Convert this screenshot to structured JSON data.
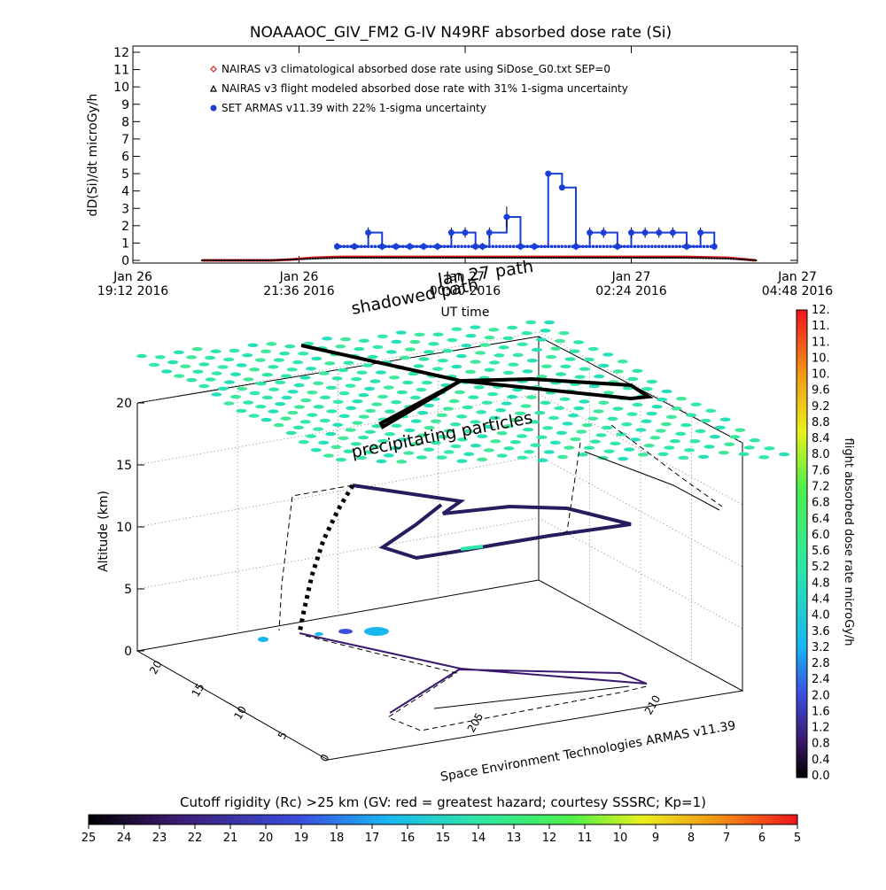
{
  "page_title": "NOAAAOC_GIV_FM2 G-IV    N49RF  absorbed dose rate (Si)",
  "chart_data": [
    {
      "type": "line",
      "title": "NOAAAOC_GIV_FM2 G-IV    N49RF  absorbed dose rate (Si)",
      "ylabel": "dD(Si)/dt microGy/h",
      "xlabel": "UT time",
      "ylim": [
        0,
        12
      ],
      "yticks": [
        "0",
        "1",
        "2",
        "3",
        "4",
        "5",
        "6",
        "7",
        "8",
        "9",
        "10",
        "11",
        "12"
      ],
      "xticks": [
        {
          "line1": "Jan 26",
          "line2": "19:12 2016"
        },
        {
          "line1": "Jan 26",
          "line2": "21:36 2016"
        },
        {
          "line1": "Jan 27",
          "line2": "00:00 2016"
        },
        {
          "line1": "Jan 27",
          "line2": "02:24 2016"
        },
        {
          "line1": "Jan 27",
          "line2": "04:48 2016"
        }
      ],
      "x_unit": "hours since Jan 26 19:12 2016",
      "xlim": [
        0,
        9.6
      ],
      "legend_position": "top-left",
      "series": [
        {
          "name": "NAIRAS v3 climatological absorbed dose rate using SiDose_G0.txt SEP=0",
          "color": "#d62020",
          "marker": "diamond",
          "x": [
            1.0,
            2.0,
            2.3,
            2.6,
            3.0,
            4.0,
            5.0,
            6.0,
            7.0,
            8.0,
            8.6,
            9.0
          ],
          "y": [
            0.0,
            0.0,
            0.05,
            0.15,
            0.2,
            0.2,
            0.2,
            0.2,
            0.2,
            0.2,
            0.15,
            0.0
          ]
        },
        {
          "name": "NAIRAS v3 flight modeled absorbed dose rate with 31% 1-sigma uncertainty",
          "color": "#000000",
          "marker": "triangle",
          "x": [
            1.0,
            2.0,
            2.3,
            2.6,
            3.0,
            4.0,
            5.0,
            6.0,
            7.0,
            8.0,
            8.6,
            9.0
          ],
          "y": [
            0.0,
            0.0,
            0.05,
            0.1,
            0.15,
            0.15,
            0.15,
            0.15,
            0.15,
            0.15,
            0.1,
            0.0
          ]
        },
        {
          "name": "SET ARMAS v11.39 with 22% 1-sigma uncertainty",
          "color": "#1a3fd6",
          "marker": "circle",
          "x": [
            2.95,
            3.2,
            3.4,
            3.6,
            3.8,
            4.0,
            4.2,
            4.4,
            4.6,
            4.8,
            4.95,
            5.05,
            5.15,
            5.4,
            5.6,
            5.8,
            6.0,
            6.2,
            6.4,
            6.6,
            6.8,
            7.0,
            7.2,
            7.4,
            7.6,
            7.8,
            8.0,
            8.2,
            8.4
          ],
          "y": [
            0.8,
            0.8,
            1.6,
            0.8,
            0.8,
            0.8,
            0.8,
            0.8,
            1.6,
            1.6,
            0.8,
            0.8,
            1.6,
            2.5,
            0.8,
            0.8,
            5.0,
            4.2,
            0.8,
            1.6,
            1.6,
            0.8,
            1.6,
            1.6,
            1.6,
            1.6,
            0.8,
            1.6,
            0.8
          ],
          "yerr": [
            0.2,
            0.2,
            0.3,
            0.2,
            0.2,
            0.2,
            0.2,
            0.2,
            0.3,
            0.3,
            0.2,
            0.2,
            0.3,
            0.6,
            0.2,
            0.2,
            0.1,
            0.1,
            0.2,
            0.3,
            0.3,
            0.2,
            0.3,
            0.3,
            0.3,
            0.3,
            0.2,
            0.3,
            0.2
          ]
        }
      ]
    },
    {
      "type": "scatter",
      "ylabel": "Altitude (km)",
      "z_ticks": [
        "0",
        "5",
        "10",
        "15",
        "20"
      ],
      "x_ticks": [
        "205",
        "210"
      ],
      "y_ticks": [
        "0",
        "5",
        "10",
        "15",
        "20"
      ],
      "annotations": [
        "shadowed path",
        "precipitating particles"
      ],
      "overprinted_xlabel": "Jan 27 path",
      "credit": "Space Environment Technologies ARMAS v11.39"
    },
    {
      "type": "heatmap",
      "title": "flight absorbed dose rate microGy/h",
      "range": [
        0.0,
        12.0
      ],
      "ticks": [
        "0.0",
        "0.4",
        "0.8",
        "1.2",
        "1.6",
        "2.0",
        "2.4",
        "2.8",
        "3.2",
        "3.6",
        "4.0",
        "4.4",
        "4.8",
        "5.2",
        "5.6",
        "6.0",
        "6.4",
        "6.8",
        "7.2",
        "7.6",
        "8.0",
        "8.4",
        "8.8",
        "9.2",
        "9.6",
        "10.",
        "10.",
        "11.",
        "11.",
        "12."
      ]
    },
    {
      "type": "heatmap",
      "title": "Cutoff rigidity (Rc) >25 km (GV: red = greatest hazard; courtesy SSSRC; Kp=1)",
      "range": [
        25,
        5
      ],
      "ticks": [
        "25",
        "24",
        "23",
        "22",
        "21",
        "20",
        "19",
        "18",
        "17",
        "16",
        "15",
        "14",
        "13",
        "12",
        "11",
        "10",
        "9",
        "8",
        "7",
        "6",
        "5"
      ]
    }
  ]
}
